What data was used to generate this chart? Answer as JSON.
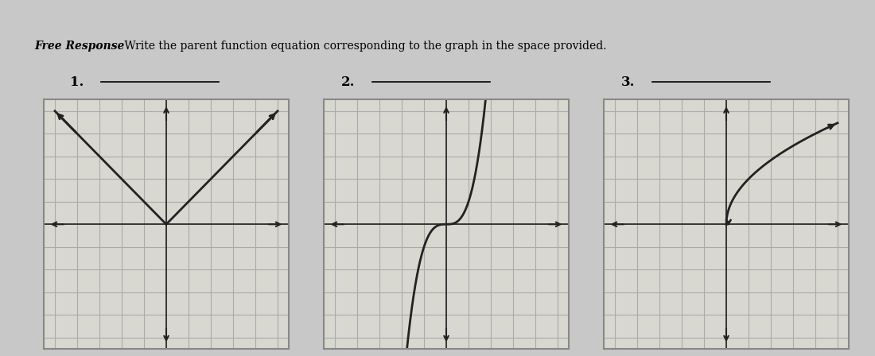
{
  "title": "Free Response Write the parent function equation corresponding to the graph in the space provided.",
  "title_bold_part": "Free Response",
  "title_regular_part": " Write the parent function equation corresponding to the graph in the space provided.",
  "label1": "1.",
  "label2": "2.",
  "label3": "3.",
  "bg_color": "#c8c8c8",
  "paper_color": "#e8e8e0",
  "grid_color": "#aaaaaa",
  "box_color": "#cccccc",
  "line_color": "#222222",
  "graph_bg": "#d8d8d0"
}
